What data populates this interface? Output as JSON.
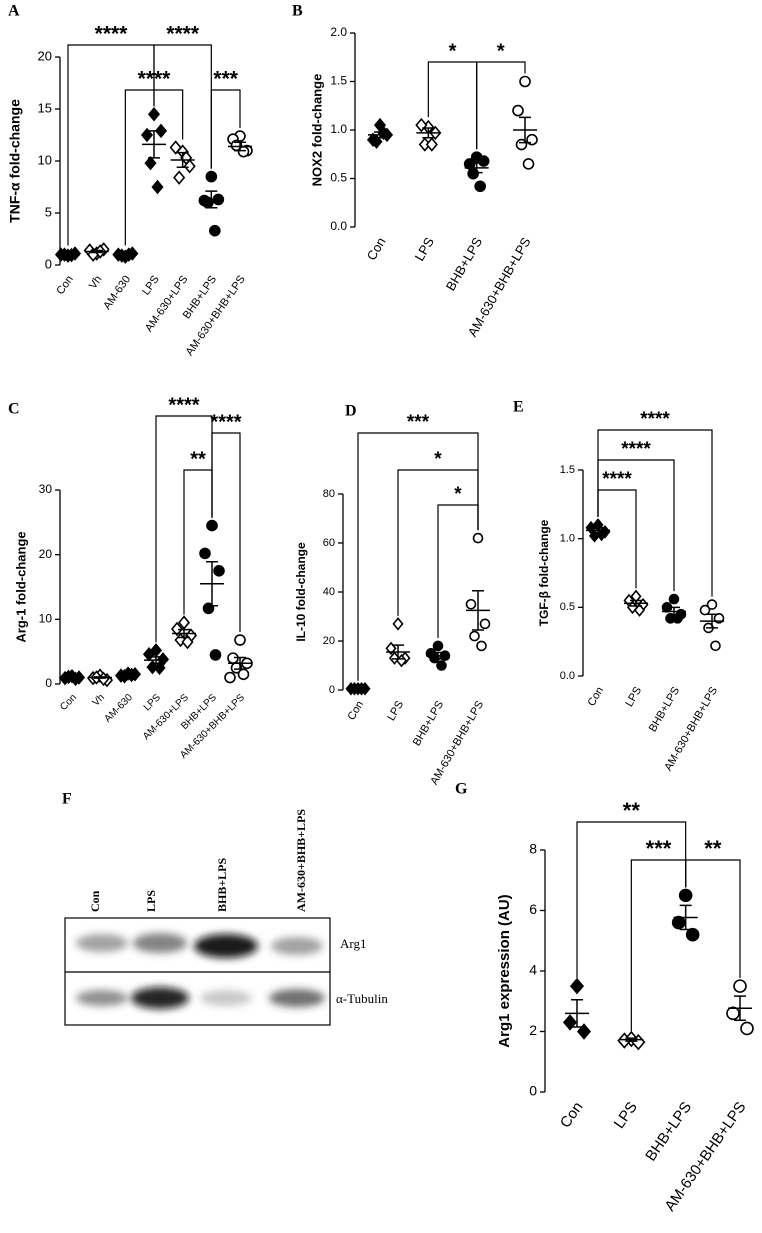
{
  "chart_data": [
    {
      "type": "strip",
      "panel": "A",
      "ylabel": "TNF-α fold-change",
      "color": "#000000",
      "categories": [
        "Con",
        "Vh",
        "AM-630",
        "LPS",
        "AM-630+LPS",
        "BHB+LPS",
        "AM-630+BHB+LPS"
      ],
      "markers": [
        "filled-diamond",
        "open-diamond",
        "filled-diamond",
        "filled-diamond",
        "open-diamond",
        "filled-circle",
        "open-circle"
      ],
      "points": [
        [
          0.9,
          1.0,
          1.1,
          1.0,
          0.95
        ],
        [
          1.1,
          1.4,
          1.5,
          1.0,
          1.3
        ],
        [
          0.8,
          1.0,
          1.1,
          0.9,
          1.0
        ],
        [
          14.5,
          12.5,
          12.9,
          9.8,
          7.5
        ],
        [
          10.9,
          11.3,
          9.5,
          8.4,
          10.3
        ],
        [
          8.5,
          6.2,
          6.3,
          6.0,
          3.3
        ],
        [
          12.4,
          12.1,
          11.0,
          11.5,
          10.9
        ]
      ],
      "means": [
        1.0,
        1.3,
        1.0,
        11.6,
        10.1,
        6.3,
        11.4
      ],
      "sems": [
        0.05,
        0.1,
        0.05,
        1.3,
        0.7,
        0.8,
        0.4
      ],
      "ylim": [
        0,
        20
      ],
      "yticks": [
        0,
        5,
        10,
        15,
        20
      ],
      "brackets": [
        {
          "from": "Con",
          "to": "LPS",
          "label": "****"
        },
        {
          "from": "LPS",
          "to": "BHB+LPS",
          "label": "****"
        },
        {
          "from": "AM-630",
          "to": "AM-630+LPS",
          "label": "****"
        },
        {
          "from": "BHB+LPS",
          "to": "AM-630+BHB+LPS",
          "label": "***"
        }
      ]
    },
    {
      "type": "strip",
      "panel": "B",
      "ylabel": "NOX2 fold-change",
      "color": "#000000",
      "categories": [
        "Con",
        "LPS",
        "BHB+LPS",
        "AM-630+BHB+LPS"
      ],
      "markers": [
        "filled-diamond",
        "open-diamond",
        "filled-circle",
        "open-circle"
      ],
      "points": [
        [
          1.05,
          0.9,
          0.95,
          0.88,
          0.97
        ],
        [
          1.03,
          1.05,
          0.97,
          0.85,
          0.85
        ],
        [
          0.72,
          0.65,
          0.68,
          0.55,
          0.42
        ],
        [
          1.5,
          1.2,
          0.9,
          0.85,
          0.65
        ]
      ],
      "means": [
        0.95,
        0.97,
        0.61,
        1.0
      ],
      "sems": [
        0.03,
        0.05,
        0.05,
        0.13
      ],
      "ylim": [
        0,
        2
      ],
      "yticks": [
        {
          "value": 0,
          "label": "0.0"
        },
        0.5,
        {
          "value": 1,
          "label": "1.0"
        },
        1.5,
        {
          "value": 2,
          "label": "2.0"
        }
      ],
      "brackets": [
        {
          "from": "LPS",
          "to": "BHB+LPS",
          "label": "*"
        },
        {
          "from": "BHB+LPS",
          "to": "AM-630+BHB+LPS",
          "label": "*"
        }
      ]
    },
    {
      "type": "strip",
      "panel": "C",
      "ylabel": "Arg-1 fold-change",
      "color": "#000000",
      "categories": [
        "Con",
        "Vh",
        "AM-630",
        "LPS",
        "AM-630+LPS",
        "BHB+LPS",
        "AM-630+BHB+LPS"
      ],
      "markers": [
        "filled-diamond",
        "open-diamond",
        "filled-diamond",
        "filled-diamond",
        "open-diamond",
        "filled-circle",
        "open-circle"
      ],
      "points": [
        [
          1.2,
          0.9,
          1.0,
          1.1,
          0.8
        ],
        [
          1.3,
          0.9,
          0.6,
          1.0,
          0.8
        ],
        [
          1.6,
          1.3,
          1.5,
          1.2,
          1.4
        ],
        [
          5.2,
          4.6,
          3.8,
          2.6,
          2.5
        ],
        [
          9.5,
          8.5,
          7.5,
          6.8,
          6.5
        ],
        [
          24.5,
          20.2,
          17.5,
          11.7,
          4.5
        ],
        [
          6.8,
          4.0,
          3.2,
          2.5,
          1.5,
          1.0
        ]
      ],
      "means": [
        1.0,
        1.0,
        1.4,
        3.7,
        7.8,
        15.5,
        3.2
      ],
      "sems": [
        0.1,
        0.1,
        0.1,
        0.5,
        0.6,
        3.4,
        0.9
      ],
      "ylim": [
        0,
        30
      ],
      "yticks": [
        0,
        10,
        20,
        30
      ],
      "brackets": [
        {
          "from": "LPS",
          "to": "BHB+LPS",
          "label": "****"
        },
        {
          "from": "BHB+LPS",
          "to": "AM-630+BHB+LPS",
          "label": "****"
        },
        {
          "from": "AM-630+LPS",
          "to": "BHB+LPS",
          "label": "**"
        }
      ]
    },
    {
      "type": "strip",
      "panel": "D",
      "ylabel": "IL-10 fold-change",
      "color": "#000000",
      "categories": [
        "Con",
        "LPS",
        "BHB+LPS",
        "AM-630+BHB+LPS"
      ],
      "markers": [
        "filled-diamond",
        "open-diamond",
        "filled-circle",
        "open-circle"
      ],
      "points": [
        [
          0.5,
          0.5,
          0.5,
          0.5,
          0.5
        ],
        [
          27,
          17,
          13,
          13,
          12
        ],
        [
          18,
          15,
          14,
          13,
          10
        ],
        [
          62,
          35,
          27,
          22,
          18
        ]
      ],
      "means": [
        0.5,
        15.5,
        14,
        32.5
      ],
      "sems": [
        0.1,
        2.8,
        1.3,
        8
      ],
      "ylim": [
        0,
        80
      ],
      "yticks": [
        0,
        20,
        40,
        60,
        80
      ],
      "brackets": [
        {
          "from": "Con",
          "to": "AM-630+BHB+LPS",
          "label": "***"
        },
        {
          "from": "LPS",
          "to": "AM-630+BHB+LPS",
          "label": "*"
        },
        {
          "from": "BHB+LPS",
          "to": "AM-630+BHB+LPS",
          "label": "*"
        }
      ]
    },
    {
      "type": "strip",
      "panel": "E",
      "ylabel": "TGF-β fold-change",
      "color": "#000000",
      "categories": [
        "Con",
        "LPS",
        "BHB+LPS",
        "AM-630+BHB+LPS"
      ],
      "markers": [
        "filled-diamond",
        "open-diamond",
        "filled-circle",
        "open-circle"
      ],
      "points": [
        [
          1.1,
          1.08,
          1.05,
          1.02,
          1.03
        ],
        [
          0.58,
          0.55,
          0.52,
          0.5,
          0.48
        ],
        [
          0.56,
          0.5,
          0.45,
          0.42,
          0.42
        ],
        [
          0.52,
          0.48,
          0.42,
          0.35,
          0.22
        ]
      ],
      "means": [
        1.06,
        0.53,
        0.47,
        0.4
      ],
      "sems": [
        0.02,
        0.02,
        0.03,
        0.05
      ],
      "ylim": [
        0,
        1.5
      ],
      "yticks": [
        {
          "value": 0,
          "label": "0.0"
        },
        0.5,
        {
          "value": 1,
          "label": "1.0"
        },
        1.5
      ],
      "brackets": [
        {
          "from": "Con",
          "to": "AM-630+BHB+LPS",
          "label": "****"
        },
        {
          "from": "Con",
          "to": "BHB+LPS",
          "label": "****"
        },
        {
          "from": "Con",
          "to": "LPS",
          "label": "****"
        }
      ]
    },
    {
      "type": "strip",
      "panel": "G",
      "ylabel": "Arg1 expression (AU)",
      "color": "#000000",
      "categories": [
        "Con",
        "LPS",
        "BHB+LPS",
        "AM-630+BHB+LPS"
      ],
      "markers": [
        "filled-diamond",
        "open-diamond",
        "filled-circle",
        "open-circle"
      ],
      "points": [
        [
          3.5,
          2.3,
          2.0
        ],
        [
          1.75,
          1.7,
          1.65
        ],
        [
          6.5,
          5.6,
          5.2
        ],
        [
          3.5,
          2.6,
          2.1
        ]
      ],
      "means": [
        2.6,
        1.73,
        5.77,
        2.77
      ],
      "sems": [
        0.45,
        0.05,
        0.4,
        0.4
      ],
      "ylim": [
        0,
        8
      ],
      "yticks": [
        0,
        2,
        4,
        6,
        8
      ],
      "brackets": [
        {
          "from": "Con",
          "to": "BHB+LPS",
          "label": "**"
        },
        {
          "from": "LPS",
          "to": "BHB+LPS",
          "label": "***"
        },
        {
          "from": "BHB+LPS",
          "to": "AM-630+BHB+LPS",
          "label": "**"
        }
      ]
    }
  ],
  "blot": {
    "panel": "F",
    "lanes": [
      "Con",
      "LPS",
      "BHB+LPS",
      "AM-630+BHB+LPS"
    ],
    "bands": [
      "Arg1",
      "α-Tubulin"
    ]
  }
}
